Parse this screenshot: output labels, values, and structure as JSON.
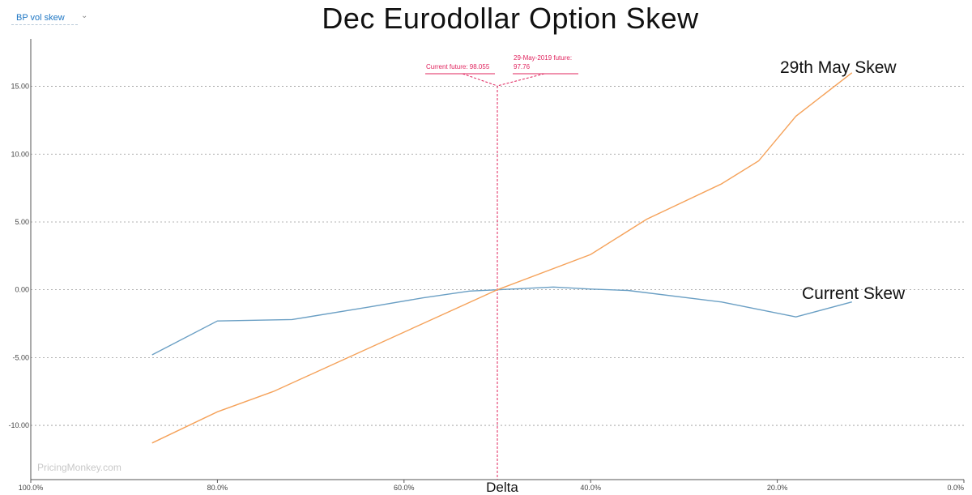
{
  "controls": {
    "selector_label": "BP vol skew",
    "selector_icon": "chevron-down-icon"
  },
  "watermark": "PricingMonkey.com",
  "chart_data": {
    "type": "line",
    "title": "Dec Eurodollar Option Skew",
    "xlabel": "Delta",
    "ylabel": "",
    "x_reversed": true,
    "xlim": [
      100,
      0
    ],
    "ylim": [
      -14,
      18.5
    ],
    "x_ticks": [
      {
        "value": 100,
        "label": "100.0%"
      },
      {
        "value": 80,
        "label": "80.0%"
      },
      {
        "value": 60,
        "label": "60.0%"
      },
      {
        "value": 40,
        "label": "40.0%"
      },
      {
        "value": 20,
        "label": "20.0%"
      },
      {
        "value": 0,
        "label": "0.0%"
      }
    ],
    "y_ticks": [
      {
        "value": 15,
        "label": "15.00"
      },
      {
        "value": 10,
        "label": "10.00"
      },
      {
        "value": 5,
        "label": "5.00"
      },
      {
        "value": 0,
        "label": "0.00"
      },
      {
        "value": -5,
        "label": "-5.00"
      },
      {
        "value": -10,
        "label": "-10.00"
      }
    ],
    "grid": "horizontal-dashed",
    "series": [
      {
        "name": "Current Skew",
        "color": "#6a9fc4",
        "x": [
          87,
          80,
          72,
          64,
          58,
          53,
          50,
          44,
          40,
          36,
          26,
          18,
          12
        ],
        "y": [
          -4.8,
          -2.3,
          -2.2,
          -1.3,
          -0.6,
          -0.1,
          0.0,
          0.2,
          0.05,
          -0.05,
          -0.9,
          -2.0,
          -0.9
        ]
      },
      {
        "name": "29th May Skew",
        "color": "#f5a25a",
        "x": [
          87,
          80,
          74,
          66,
          58,
          50,
          40,
          34,
          26,
          22,
          18,
          12
        ],
        "y": [
          -11.3,
          -9.0,
          -7.5,
          -5.0,
          -2.5,
          0.0,
          2.6,
          5.2,
          7.8,
          9.5,
          12.8,
          16.0
        ]
      }
    ],
    "annotations": {
      "vline_x": 50,
      "vline_color": "#e0245e",
      "current_future": "Current future: 98.055",
      "may_future_line1": "29-May-2019 future:",
      "may_future_line2": "97.76"
    }
  }
}
